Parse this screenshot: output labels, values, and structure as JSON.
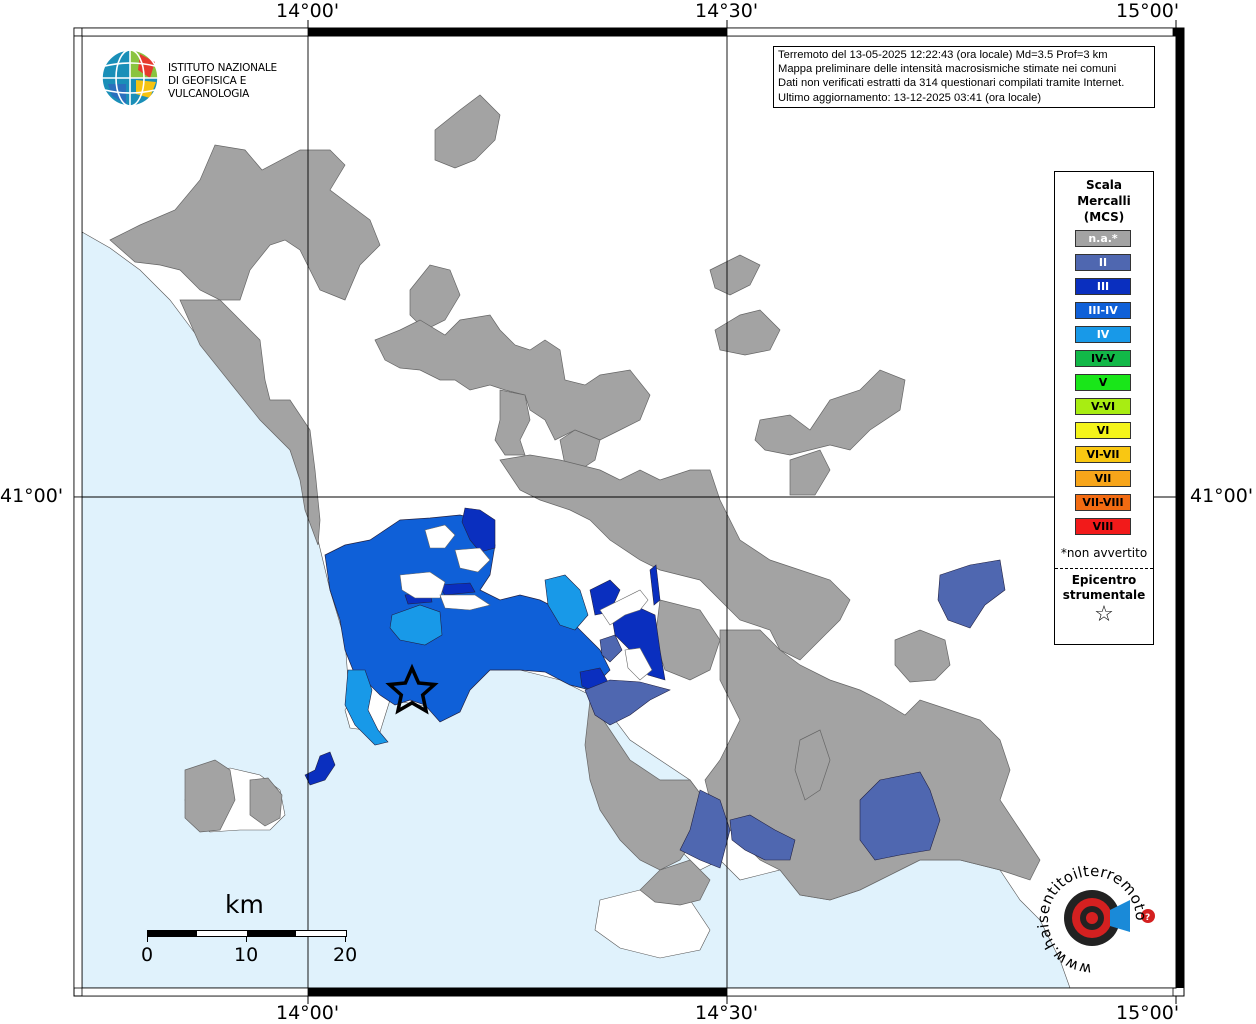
{
  "frame": {
    "top_labels": [
      "14°00'",
      "14°30'",
      "15°00'"
    ],
    "bottom_labels": [
      "14°00'",
      "14°30'",
      "15°00'"
    ],
    "left_label": "41°00'",
    "right_label": "41°00'"
  },
  "logo": {
    "line1": "ISTITUTO NAZIONALE",
    "line2": "DI GEOFISICA E VULCANOLOGIA"
  },
  "info": {
    "line1": "Terremoto del 13-05-2025 12:22:43 (ora locale) Md=3.5 Prof=3 km",
    "line2": "Mappa preliminare delle intensità macrosismiche stimate nei comuni",
    "line3": "Dati non verificati estratti da 314 questionari compilati tramite Internet.",
    "line4": "Ultimo aggiornamento: 13-12-2025 03:41 (ora locale)"
  },
  "legend": {
    "title_line1": "Scala",
    "title_line2": "Mercalli",
    "title_line3": "(MCS)",
    "items": [
      {
        "label": "n.a.*",
        "color": "#a3a3a3",
        "text_color": "#ffffff"
      },
      {
        "label": "II",
        "color": "#4f67b0",
        "text_color": "#ffffff"
      },
      {
        "label": "III",
        "color": "#0a2fbf",
        "text_color": "#ffffff"
      },
      {
        "label": "III-IV",
        "color": "#0f60d8",
        "text_color": "#ffffff"
      },
      {
        "label": "IV",
        "color": "#1899e8",
        "text_color": "#ffffff"
      },
      {
        "label": "IV-V",
        "color": "#12b848",
        "text_color": "#000000"
      },
      {
        "label": "V",
        "color": "#19e619",
        "text_color": "#000000"
      },
      {
        "label": "V-VI",
        "color": "#a8ed12",
        "text_color": "#000000"
      },
      {
        "label": "VI",
        "color": "#f4f41a",
        "text_color": "#000000"
      },
      {
        "label": "VI-VII",
        "color": "#f9c712",
        "text_color": "#000000"
      },
      {
        "label": "VII",
        "color": "#f7a51a",
        "text_color": "#000000"
      },
      {
        "label": "VII-VIII",
        "color": "#f26b12",
        "text_color": "#000000"
      },
      {
        "label": "VIII",
        "color": "#f21a1a",
        "text_color": "#000000"
      }
    ],
    "note": "*non avvertito",
    "epicenter_line1": "Epicentro",
    "epicenter_line2": "strumentale",
    "epicenter_symbol": "☆"
  },
  "scale_bar": {
    "unit": "km",
    "ticks": [
      "0",
      "10",
      "20"
    ]
  },
  "watermark": {
    "text": "www.haisentitoilterremoto.it"
  },
  "colors": {
    "sea": "#e0f2fc",
    "land": "#ffffff",
    "na": "#a3a3a3"
  }
}
